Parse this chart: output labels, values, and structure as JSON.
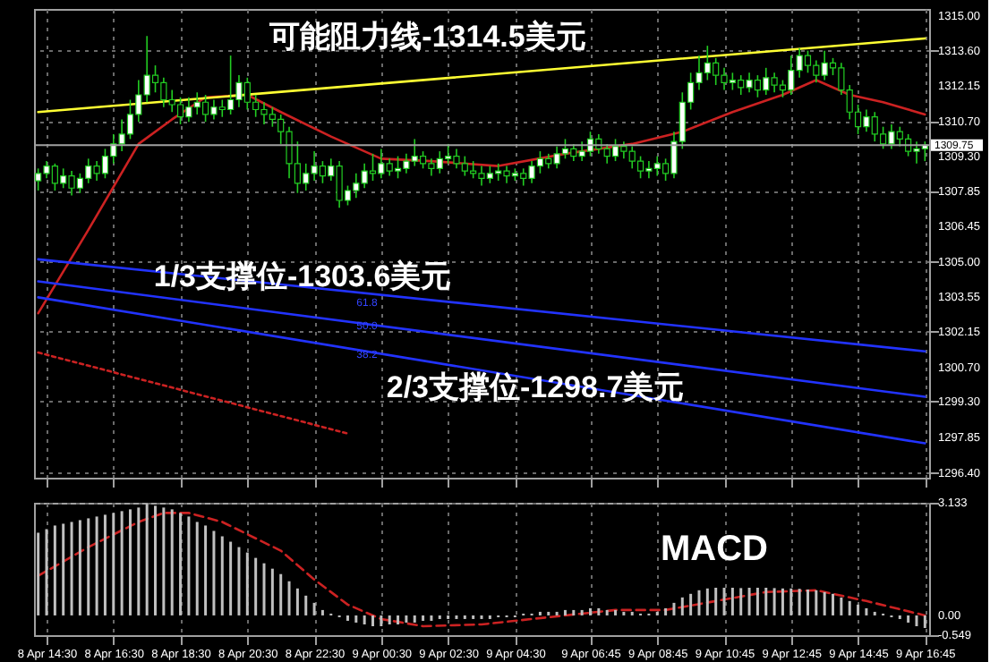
{
  "chart_data": [
    {
      "type": "candlestick",
      "tick_labels": "y",
      "grid": true,
      "categories": [
        null,
        null,
        null,
        null,
        null,
        null,
        null,
        null,
        null,
        null,
        null,
        null,
        null,
        null,
        null,
        null,
        null,
        null,
        null,
        null,
        null,
        null,
        null,
        null,
        null,
        null,
        null,
        null,
        null,
        null,
        null,
        null,
        null,
        null,
        null,
        null,
        null,
        null,
        null,
        null,
        null,
        null,
        null,
        null,
        null,
        null,
        null,
        null,
        null,
        null,
        null,
        null,
        null,
        null,
        null,
        null,
        null,
        null,
        null,
        null,
        null,
        null,
        null,
        null,
        null,
        null,
        null,
        null,
        null,
        null,
        null,
        null,
        null,
        null,
        null,
        null,
        null,
        null,
        null,
        null,
        null,
        null,
        null,
        null,
        null,
        null,
        null,
        null,
        null,
        null,
        null,
        null,
        null,
        null,
        null,
        null,
        null,
        null,
        null,
        null,
        null,
        null,
        null,
        null,
        null,
        null,
        null
      ],
      "ylim": [
        1296.2,
        1315.3
      ],
      "yticks": [
        {
          "value": 1315,
          "label": "1315.00"
        },
        {
          "value": 1313.6,
          "label": "1313.60"
        },
        1312.15,
        {
          "value": 1310.7,
          "label": "1310.70"
        },
        {
          "value": 1309.3,
          "label": "1309.30"
        },
        1307.85,
        1306.45,
        {
          "value": 1305,
          "label": "1305.00"
        },
        1303.55,
        1302.15,
        {
          "value": 1300.7,
          "label": "1300.70"
        },
        {
          "value": 1299.3,
          "label": "1299.30"
        },
        1297.85,
        {
          "value": 1296.4,
          "label": "1296.40"
        }
      ],
      "ohlc": [
        [
          1308.3,
          1308.8,
          1307.9,
          1308.6
        ],
        [
          1308.6,
          1309.1,
          1308.4,
          1308.9
        ],
        [
          1308.9,
          1309.0,
          1307.9,
          1308.2
        ],
        [
          1308.2,
          1308.8,
          1308.0,
          1308.5
        ],
        [
          1308.5,
          1308.7,
          1307.7,
          1308.0
        ],
        [
          1308.0,
          1308.6,
          1307.8,
          1308.4
        ],
        [
          1308.4,
          1309.2,
          1308.2,
          1308.9
        ],
        [
          1308.9,
          1309.1,
          1308.3,
          1308.6
        ],
        [
          1308.6,
          1309.6,
          1308.4,
          1309.3
        ],
        [
          1309.3,
          1310.2,
          1309.0,
          1309.8
        ],
        [
          1309.8,
          1310.8,
          1309.5,
          1310.2
        ],
        [
          1310.2,
          1311.6,
          1310.0,
          1311.0
        ],
        [
          1311.0,
          1312.4,
          1310.7,
          1311.8
        ],
        [
          1311.8,
          1314.2,
          1311.5,
          1312.6
        ],
        [
          1312.6,
          1313.0,
          1311.9,
          1312.3
        ],
        [
          1312.3,
          1312.5,
          1311.3,
          1311.6
        ],
        [
          1311.6,
          1312.0,
          1311.1,
          1311.4
        ],
        [
          1311.4,
          1311.7,
          1310.6,
          1310.9
        ],
        [
          1310.9,
          1311.7,
          1310.7,
          1311.3
        ],
        [
          1311.3,
          1311.9,
          1311.0,
          1311.5
        ],
        [
          1311.5,
          1311.8,
          1310.7,
          1311.0
        ],
        [
          1311.0,
          1311.6,
          1310.8,
          1311.3
        ],
        [
          1311.3,
          1311.6,
          1310.9,
          1311.2
        ],
        [
          1311.2,
          1313.4,
          1311.0,
          1311.6
        ],
        [
          1311.6,
          1312.6,
          1311.3,
          1312.3
        ],
        [
          1312.3,
          1312.5,
          1311.2,
          1311.5
        ],
        [
          1311.5,
          1311.8,
          1310.9,
          1311.2
        ],
        [
          1311.2,
          1311.5,
          1310.6,
          1311.0
        ],
        [
          1311.0,
          1311.3,
          1310.5,
          1310.8
        ],
        [
          1310.8,
          1311.0,
          1309.8,
          1310.3
        ],
        [
          1310.3,
          1310.5,
          1308.4,
          1309.0
        ],
        [
          1309.0,
          1309.9,
          1307.8,
          1308.2
        ],
        [
          1308.2,
          1309.0,
          1307.9,
          1308.6
        ],
        [
          1308.6,
          1309.5,
          1308.3,
          1308.9
        ],
        [
          1308.9,
          1309.1,
          1308.2,
          1308.5
        ],
        [
          1308.5,
          1309.2,
          1308.3,
          1308.9
        ],
        [
          1308.9,
          1309.1,
          1307.2,
          1307.5
        ],
        [
          1307.5,
          1308.1,
          1307.3,
          1307.9
        ],
        [
          1307.9,
          1308.6,
          1307.6,
          1308.2
        ],
        [
          1308.2,
          1309.0,
          1308.0,
          1308.7
        ],
        [
          1308.7,
          1309.4,
          1308.3,
          1308.6
        ],
        [
          1308.6,
          1309.6,
          1308.4,
          1309.0
        ],
        [
          1309.0,
          1309.2,
          1308.5,
          1308.7
        ],
        [
          1308.7,
          1309.3,
          1308.4,
          1308.8
        ],
        [
          1308.8,
          1309.4,
          1308.6,
          1309.1
        ],
        [
          1309.1,
          1310.0,
          1308.9,
          1309.3
        ],
        [
          1309.3,
          1309.5,
          1308.8,
          1309.0
        ],
        [
          1309.0,
          1309.2,
          1308.5,
          1308.8
        ],
        [
          1308.8,
          1309.5,
          1308.6,
          1309.2
        ],
        [
          1309.2,
          1309.8,
          1309.0,
          1309.3
        ],
        [
          1309.3,
          1309.6,
          1308.8,
          1309.0
        ],
        [
          1309.0,
          1309.3,
          1308.5,
          1308.7
        ],
        [
          1308.7,
          1309.1,
          1308.4,
          1308.6
        ],
        [
          1308.6,
          1308.9,
          1308.1,
          1308.4
        ],
        [
          1308.4,
          1308.9,
          1308.2,
          1308.6
        ],
        [
          1308.6,
          1309.0,
          1308.3,
          1308.7
        ],
        [
          1308.7,
          1308.9,
          1308.2,
          1308.5
        ],
        [
          1308.5,
          1308.8,
          1308.3,
          1308.6
        ],
        [
          1308.6,
          1308.8,
          1308.1,
          1308.4
        ],
        [
          1308.4,
          1309.1,
          1308.2,
          1308.9
        ],
        [
          1308.9,
          1309.5,
          1308.6,
          1309.2
        ],
        [
          1309.2,
          1309.4,
          1308.8,
          1309.0
        ],
        [
          1309.0,
          1309.7,
          1308.8,
          1309.4
        ],
        [
          1309.4,
          1310.0,
          1309.2,
          1309.6
        ],
        [
          1309.6,
          1309.8,
          1309.1,
          1309.3
        ],
        [
          1309.3,
          1309.9,
          1309.1,
          1309.5
        ],
        [
          1309.5,
          1310.3,
          1309.3,
          1310.0
        ],
        [
          1310.0,
          1310.2,
          1309.4,
          1309.6
        ],
        [
          1309.6,
          1309.8,
          1309.0,
          1309.3
        ],
        [
          1309.3,
          1310.0,
          1309.1,
          1309.7
        ],
        [
          1309.7,
          1309.9,
          1309.2,
          1309.5
        ],
        [
          1309.5,
          1309.7,
          1308.8,
          1309.1
        ],
        [
          1309.1,
          1309.3,
          1308.4,
          1308.7
        ],
        [
          1308.7,
          1309.1,
          1308.4,
          1308.8
        ],
        [
          1308.8,
          1309.3,
          1308.5,
          1309.0
        ],
        [
          1309.0,
          1309.2,
          1308.3,
          1308.6
        ],
        [
          1308.6,
          1310.3,
          1308.4,
          1309.9
        ],
        [
          1309.9,
          1311.9,
          1309.6,
          1311.5
        ],
        [
          1311.5,
          1312.7,
          1311.2,
          1312.3
        ],
        [
          1312.3,
          1313.4,
          1312.0,
          1312.7
        ],
        [
          1312.7,
          1313.8,
          1312.4,
          1313.1
        ],
        [
          1313.1,
          1313.3,
          1312.2,
          1312.6
        ],
        [
          1312.6,
          1312.9,
          1312.0,
          1312.3
        ],
        [
          1312.3,
          1312.7,
          1312.0,
          1312.4
        ],
        [
          1312.4,
          1312.6,
          1311.8,
          1312.1
        ],
        [
          1312.1,
          1312.7,
          1311.9,
          1312.4
        ],
        [
          1312.4,
          1312.6,
          1311.7,
          1312.0
        ],
        [
          1312.0,
          1312.9,
          1311.8,
          1312.5
        ],
        [
          1312.5,
          1312.7,
          1311.9,
          1312.2
        ],
        [
          1312.2,
          1312.4,
          1311.7,
          1312.0
        ],
        [
          1312.0,
          1313.4,
          1311.8,
          1312.8
        ],
        [
          1312.8,
          1313.7,
          1312.5,
          1313.4
        ],
        [
          1313.4,
          1313.6,
          1312.7,
          1313.0
        ],
        [
          1313.0,
          1313.2,
          1312.3,
          1312.6
        ],
        [
          1312.6,
          1313.6,
          1312.4,
          1313.1
        ],
        [
          1313.1,
          1313.3,
          1312.6,
          1312.9
        ],
        [
          1312.9,
          1313.1,
          1311.8,
          1312.0
        ],
        [
          1312.0,
          1312.2,
          1310.8,
          1311.1
        ],
        [
          1311.1,
          1311.4,
          1310.2,
          1310.5
        ],
        [
          1310.5,
          1311.2,
          1310.3,
          1310.9
        ],
        [
          1310.9,
          1311.1,
          1309.9,
          1310.2
        ],
        [
          1310.2,
          1310.5,
          1309.6,
          1309.8
        ],
        [
          1309.8,
          1310.6,
          1309.6,
          1310.3
        ],
        [
          1310.3,
          1310.5,
          1309.7,
          1310.0
        ],
        [
          1310.0,
          1310.2,
          1309.3,
          1309.5
        ],
        [
          1309.5,
          1309.9,
          1309.0,
          1309.6
        ],
        [
          1309.6,
          1309.9,
          1309.1,
          1309.75
        ]
      ],
      "series": [
        {
          "type": "line",
          "color": "#cc2222",
          "values": [
            1302.9,
            null,
            null,
            null,
            null,
            null,
            1306.3,
            null,
            null,
            null,
            null,
            null,
            1309.8,
            null,
            null,
            null,
            1310.8,
            null,
            null,
            null,
            1311.7,
            null,
            null,
            null,
            null,
            1311.8,
            null,
            null,
            null,
            1311.1,
            null,
            null,
            null,
            null,
            null,
            1310.1,
            null,
            null,
            null,
            null,
            null,
            1309.2,
            null,
            null,
            null,
            null,
            null,
            1309.1,
            null,
            null,
            null,
            null,
            null,
            null,
            null,
            1308.9,
            null,
            null,
            null,
            null,
            null,
            null,
            null,
            1309.4,
            null,
            null,
            null,
            null,
            null,
            null,
            null,
            1309.8,
            null,
            null,
            null,
            null,
            null,
            1310.3,
            null,
            null,
            null,
            null,
            null,
            1311.1,
            null,
            null,
            null,
            null,
            null,
            1311.8,
            null,
            null,
            null,
            1312.4,
            null,
            null,
            null,
            1311.8,
            null,
            null,
            null,
            1311.5,
            null,
            null,
            null,
            null,
            1311.0
          ]
        },
        {
          "type": "line",
          "color": "#cc2222",
          "line_style": "dotted",
          "values": [
            1301.3,
            null,
            null,
            null,
            null,
            null,
            null,
            null,
            null,
            null,
            null,
            null,
            null,
            null,
            null,
            null,
            null,
            null,
            null,
            null,
            null,
            null,
            null,
            null,
            null,
            null,
            null,
            null,
            null,
            null,
            null,
            null,
            null,
            null,
            null,
            null,
            null,
            1298.0,
            null,
            null,
            null,
            null,
            null,
            null,
            null,
            null,
            null,
            null,
            null,
            null,
            null,
            null,
            null,
            null,
            null,
            null,
            null,
            null,
            null,
            null,
            null,
            null,
            null,
            null,
            null,
            null,
            null,
            null,
            null,
            null,
            null,
            null,
            null,
            null,
            null,
            null,
            null,
            null,
            null,
            null,
            null,
            null,
            null,
            null,
            null,
            null,
            null,
            null,
            null,
            null,
            null,
            null,
            null,
            null,
            null,
            null,
            null,
            null,
            null,
            null,
            null,
            null,
            null,
            null,
            null,
            null,
            null
          ]
        },
        {
          "type": "line",
          "color": "#ffff33",
          "values": [
            1311.1,
            null,
            null,
            null,
            null,
            null,
            null,
            null,
            null,
            null,
            null,
            null,
            null,
            null,
            null,
            null,
            null,
            null,
            null,
            null,
            null,
            null,
            null,
            null,
            null,
            null,
            null,
            null,
            null,
            null,
            null,
            null,
            null,
            null,
            null,
            null,
            null,
            null,
            null,
            null,
            null,
            null,
            null,
            null,
            null,
            null,
            null,
            null,
            null,
            null,
            null,
            null,
            null,
            null,
            null,
            null,
            null,
            null,
            null,
            null,
            null,
            null,
            null,
            null,
            null,
            null,
            null,
            null,
            null,
            null,
            null,
            null,
            null,
            null,
            null,
            null,
            null,
            null,
            null,
            null,
            null,
            null,
            null,
            null,
            null,
            null,
            null,
            null,
            null,
            null,
            null,
            null,
            null,
            null,
            null,
            null,
            null,
            null,
            null,
            null,
            null,
            null,
            null,
            null,
            null,
            null,
            1314.1
          ]
        },
        {
          "type": "line",
          "color": "#2233ff",
          "values": [
            1305.1,
            null,
            null,
            null,
            null,
            null,
            null,
            null,
            null,
            null,
            null,
            null,
            null,
            null,
            null,
            null,
            null,
            null,
            null,
            null,
            null,
            null,
            null,
            null,
            null,
            null,
            null,
            null,
            null,
            null,
            null,
            null,
            null,
            null,
            null,
            null,
            null,
            null,
            null,
            null,
            null,
            null,
            null,
            null,
            null,
            null,
            null,
            null,
            null,
            null,
            null,
            null,
            null,
            null,
            null,
            null,
            null,
            null,
            null,
            null,
            null,
            null,
            null,
            null,
            null,
            null,
            null,
            null,
            null,
            null,
            null,
            null,
            null,
            null,
            null,
            null,
            null,
            null,
            null,
            null,
            null,
            null,
            null,
            null,
            null,
            null,
            null,
            null,
            null,
            null,
            null,
            null,
            null,
            null,
            null,
            null,
            null,
            null,
            null,
            null,
            null,
            null,
            null,
            null,
            null,
            null,
            1301.35
          ]
        },
        {
          "type": "line",
          "color": "#2233ff",
          "values": [
            1304.2,
            null,
            null,
            null,
            null,
            null,
            null,
            null,
            null,
            null,
            null,
            null,
            null,
            null,
            null,
            null,
            null,
            null,
            null,
            null,
            null,
            null,
            null,
            null,
            null,
            null,
            null,
            null,
            null,
            null,
            null,
            null,
            null,
            null,
            null,
            null,
            null,
            null,
            null,
            null,
            null,
            null,
            null,
            null,
            null,
            null,
            null,
            null,
            null,
            null,
            null,
            null,
            null,
            null,
            null,
            null,
            null,
            null,
            null,
            null,
            null,
            null,
            null,
            null,
            null,
            null,
            null,
            null,
            null,
            null,
            null,
            null,
            null,
            null,
            null,
            null,
            null,
            null,
            null,
            null,
            null,
            null,
            null,
            null,
            null,
            null,
            null,
            null,
            null,
            null,
            null,
            null,
            null,
            null,
            null,
            null,
            null,
            null,
            null,
            null,
            null,
            null,
            null,
            null,
            null,
            null,
            1299.5
          ]
        },
        {
          "type": "line",
          "color": "#2233ff",
          "values": [
            1303.55,
            null,
            null,
            null,
            null,
            null,
            null,
            null,
            null,
            null,
            null,
            null,
            null,
            null,
            null,
            null,
            null,
            null,
            null,
            null,
            null,
            null,
            null,
            null,
            null,
            null,
            null,
            null,
            null,
            null,
            null,
            null,
            null,
            null,
            null,
            null,
            null,
            null,
            null,
            null,
            null,
            null,
            null,
            null,
            null,
            null,
            null,
            null,
            null,
            null,
            null,
            null,
            null,
            null,
            null,
            null,
            null,
            null,
            null,
            null,
            null,
            null,
            null,
            null,
            null,
            null,
            null,
            null,
            null,
            null,
            null,
            null,
            null,
            null,
            null,
            null,
            null,
            null,
            null,
            null,
            null,
            null,
            null,
            null,
            null,
            null,
            null,
            null,
            null,
            null,
            null,
            null,
            null,
            null,
            null,
            null,
            null,
            null,
            null,
            null,
            null,
            null,
            null,
            null,
            null,
            null,
            1297.6
          ]
        }
      ],
      "ref_lines": [
        {
          "axis": "y",
          "value": 1309.75,
          "label": "1309.75",
          "color": "#a0a0a0"
        }
      ],
      "annotations": [
        "可能阻力线-1314.5美元",
        "1/3支撑位-1303.6美元",
        "2/3支撑位-1298.7美元",
        "61.8",
        "50.0",
        "38.2"
      ]
    },
    {
      "type": "bar",
      "grid": true,
      "color": "#c0c0c0",
      "categories": [
        null,
        "8 Apr 14:30",
        null,
        null,
        null,
        null,
        null,
        null,
        null,
        "8 Apr 16:30",
        null,
        null,
        null,
        null,
        null,
        null,
        null,
        "8 Apr 18:30",
        null,
        null,
        null,
        null,
        null,
        null,
        null,
        "8 Apr 20:30",
        null,
        null,
        null,
        null,
        null,
        null,
        null,
        "8 Apr 22:30",
        null,
        null,
        null,
        null,
        null,
        null,
        null,
        "9 Apr 00:30",
        null,
        null,
        null,
        null,
        null,
        null,
        null,
        "9 Apr 02:30",
        null,
        null,
        null,
        null,
        null,
        null,
        null,
        "9 Apr 04:30",
        null,
        null,
        null,
        null,
        null,
        null,
        null,
        null,
        "9 Apr 06:45",
        null,
        null,
        null,
        null,
        null,
        null,
        null,
        "9 Apr 08:45",
        null,
        null,
        null,
        null,
        null,
        null,
        null,
        "9 Apr 10:45",
        null,
        null,
        null,
        null,
        null,
        null,
        null,
        "9 Apr 12:45",
        null,
        null,
        null,
        null,
        null,
        null,
        null,
        "9 Apr 14:45",
        null,
        null,
        null,
        null,
        null,
        null,
        null,
        "9 Apr 16:45"
      ],
      "ylim": [
        -0.549,
        3.133
      ],
      "yticks": [
        3.133,
        {
          "value": 0,
          "label": "0.00"
        },
        -0.549
      ],
      "values": [
        2.3,
        2.4,
        2.5,
        2.55,
        2.6,
        2.65,
        2.7,
        2.75,
        2.8,
        2.85,
        2.9,
        2.95,
        3.0,
        3.1,
        3.05,
        3.0,
        2.95,
        2.85,
        2.75,
        2.6,
        2.5,
        2.35,
        2.2,
        2.05,
        1.9,
        1.75,
        1.6,
        1.45,
        1.3,
        1.15,
        0.95,
        0.75,
        0.55,
        0.35,
        0.15,
        0.05,
        -0.05,
        -0.15,
        -0.2,
        -0.25,
        -0.3,
        -0.3,
        -0.25,
        -0.25,
        -0.2,
        -0.2,
        -0.15,
        -0.15,
        -0.1,
        -0.1,
        -0.1,
        -0.1,
        -0.1,
        -0.1,
        -0.1,
        -0.05,
        -0.05,
        -0.05,
        0.05,
        0.05,
        0.1,
        0.1,
        0.1,
        0.15,
        0.15,
        0.15,
        0.2,
        0.2,
        0.15,
        0.15,
        0.1,
        0.1,
        0.05,
        0.05,
        0.1,
        0.2,
        0.35,
        0.5,
        0.6,
        0.7,
        0.75,
        0.77,
        0.77,
        0.77,
        0.76,
        0.77,
        0.77,
        0.77,
        0.76,
        0.75,
        0.75,
        0.74,
        0.72,
        0.7,
        0.65,
        0.6,
        0.5,
        0.4,
        0.3,
        0.2,
        0.1,
        0.05,
        -0.05,
        -0.1,
        -0.2,
        -0.3,
        -0.35
      ],
      "series": [
        {
          "type": "line",
          "color": "#cc2222",
          "line_style": "dashed",
          "values": [
            1.1,
            null,
            null,
            null,
            null,
            null,
            1.9,
            null,
            null,
            null,
            null,
            null,
            2.6,
            null,
            null,
            2.85,
            null,
            null,
            2.85,
            null,
            null,
            null,
            2.6,
            null,
            null,
            null,
            null,
            null,
            null,
            1.8,
            null,
            null,
            null,
            1.0,
            null,
            null,
            null,
            0.3,
            null,
            null,
            null,
            -0.1,
            null,
            null,
            null,
            null,
            -0.3,
            null,
            null,
            null,
            null,
            null,
            null,
            -0.25,
            null,
            null,
            null,
            null,
            null,
            null,
            null,
            -0.05,
            null,
            null,
            null,
            null,
            null,
            null,
            null,
            0.15,
            null,
            null,
            null,
            null,
            null,
            0.15,
            null,
            null,
            null,
            null,
            null,
            0.4,
            null,
            null,
            null,
            null,
            null,
            0.65,
            null,
            null,
            null,
            null,
            null,
            0.7,
            null,
            null,
            null,
            null,
            null,
            0.4,
            null,
            null,
            null,
            null,
            null,
            null,
            0.0
          ]
        }
      ],
      "annotations": [
        "MACD"
      ]
    }
  ]
}
